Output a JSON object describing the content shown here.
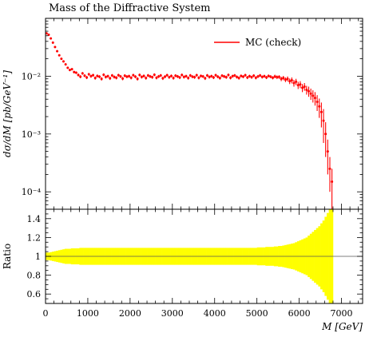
{
  "chart_data": {
    "type": "scatter",
    "title": "Mass of the Diffractive System",
    "main_panel": {
      "ylabel": "dσ/dM [pb/GeV⁻¹]",
      "yscale": "log",
      "ylim": [
        5e-05,
        0.1
      ],
      "y_ticks": [
        0.0001,
        0.001,
        0.01
      ],
      "y_tick_labels": [
        "10⁻⁴",
        "10⁻³",
        "10⁻²"
      ],
      "series": [
        {
          "name": "MC (check)",
          "color": "#ff0000",
          "x": [
            25,
            75,
            125,
            175,
            225,
            275,
            325,
            375,
            425,
            475,
            525,
            575,
            625,
            675,
            725,
            775,
            825,
            875,
            925,
            975,
            1025,
            1075,
            1125,
            1175,
            1225,
            1275,
            1325,
            1375,
            1425,
            1475,
            1525,
            1575,
            1625,
            1675,
            1725,
            1775,
            1825,
            1875,
            1925,
            1975,
            2025,
            2075,
            2125,
            2175,
            2225,
            2275,
            2325,
            2375,
            2425,
            2475,
            2525,
            2575,
            2625,
            2675,
            2725,
            2775,
            2825,
            2875,
            2925,
            2975,
            3025,
            3075,
            3125,
            3175,
            3225,
            3275,
            3325,
            3375,
            3425,
            3475,
            3525,
            3575,
            3625,
            3675,
            3725,
            3775,
            3825,
            3875,
            3925,
            3975,
            4025,
            4075,
            4125,
            4175,
            4225,
            4275,
            4325,
            4375,
            4425,
            4475,
            4525,
            4575,
            4625,
            4675,
            4725,
            4775,
            4825,
            4875,
            4925,
            4975,
            5025,
            5075,
            5125,
            5175,
            5225,
            5275,
            5325,
            5375,
            5425,
            5475,
            5525,
            5575,
            5625,
            5675,
            5725,
            5775,
            5825,
            5875,
            5925,
            5975,
            6025,
            6075,
            6125,
            6175,
            6225,
            6275,
            6325,
            6375,
            6425,
            6475,
            6525,
            6575,
            6625,
            6675,
            6725,
            6775
          ],
          "y": [
            0.055,
            0.052,
            0.045,
            0.038,
            0.032,
            0.027,
            0.023,
            0.02,
            0.018,
            0.016,
            0.014,
            0.0128,
            0.0132,
            0.0118,
            0.0115,
            0.0105,
            0.0098,
            0.0112,
            0.0102,
            0.0095,
            0.0108,
            0.01,
            0.0104,
            0.0093,
            0.0101,
            0.0098,
            0.009,
            0.0106,
            0.0097,
            0.01,
            0.0092,
            0.0103,
            0.0097,
            0.0094,
            0.0104,
            0.0099,
            0.0091,
            0.0102,
            0.0098,
            0.01,
            0.0094,
            0.0104,
            0.0098,
            0.009,
            0.0105,
            0.0097,
            0.0101,
            0.0093,
            0.0103,
            0.0099,
            0.0096,
            0.0106,
            0.0094,
            0.0099,
            0.0103,
            0.0092,
            0.0098,
            0.0104,
            0.0096,
            0.0101,
            0.0093,
            0.0102,
            0.0099,
            0.0095,
            0.0105,
            0.0097,
            0.01,
            0.0093,
            0.0103,
            0.0098,
            0.0096,
            0.0104,
            0.0094,
            0.0101,
            0.0099,
            0.0092,
            0.0103,
            0.0097,
            0.01,
            0.0095,
            0.0104,
            0.0098,
            0.0093,
            0.0102,
            0.0099,
            0.0096,
            0.0105,
            0.0094,
            0.01,
            0.0103,
            0.0097,
            0.0093,
            0.0101,
            0.0098,
            0.0104,
            0.0095,
            0.01,
            0.0096,
            0.0102,
            0.0094,
            0.0099,
            0.0103,
            0.0097,
            0.01,
            0.0095,
            0.0101,
            0.0098,
            0.0094,
            0.0099,
            0.0096,
            0.0097,
            0.009,
            0.0093,
            0.0087,
            0.009,
            0.0082,
            0.0085,
            0.0076,
            0.008,
            0.007,
            0.0072,
            0.0063,
            0.0066,
            0.0058,
            0.0055,
            0.005,
            0.0046,
            0.0042,
            0.0036,
            0.003,
            0.0024,
            0.0017,
            0.001,
            0.0005,
            0.00025,
            0.00015
          ],
          "y_err": [
            0.002,
            0.0019,
            0.0017,
            0.0015,
            0.0013,
            0.0011,
            0.0009,
            0.0008,
            0.0007,
            0.0007,
            0.0006,
            0.0006,
            0.0006,
            0.0006,
            0.0006,
            0.0006,
            0.0006,
            0.0006,
            0.0006,
            0.0006,
            0.0006,
            0.0006,
            0.0006,
            0.0006,
            0.0006,
            0.0006,
            0.0006,
            0.0006,
            0.0006,
            0.0006,
            0.0006,
            0.0006,
            0.0006,
            0.0006,
            0.0006,
            0.0006,
            0.0006,
            0.0006,
            0.0006,
            0.0006,
            0.0006,
            0.0006,
            0.0006,
            0.0006,
            0.0006,
            0.0006,
            0.0006,
            0.0006,
            0.0006,
            0.0006,
            0.0006,
            0.0006,
            0.0006,
            0.0006,
            0.0006,
            0.0006,
            0.0006,
            0.0006,
            0.0006,
            0.0006,
            0.0006,
            0.0006,
            0.0006,
            0.0006,
            0.0006,
            0.0006,
            0.0006,
            0.0006,
            0.0006,
            0.0006,
            0.0006,
            0.0006,
            0.0006,
            0.0006,
            0.0006,
            0.0006,
            0.0006,
            0.0006,
            0.0006,
            0.0006,
            0.0006,
            0.0006,
            0.0006,
            0.0006,
            0.0006,
            0.0006,
            0.0006,
            0.0006,
            0.0006,
            0.0006,
            0.0006,
            0.0006,
            0.0006,
            0.0006,
            0.0006,
            0.0006,
            0.0006,
            0.0006,
            0.0006,
            0.0006,
            0.0006,
            0.0006,
            0.0006,
            0.0006,
            0.0006,
            0.0006,
            0.0006,
            0.0006,
            0.0007,
            0.0007,
            0.0007,
            0.0008,
            0.0008,
            0.0008,
            0.0009,
            0.0009,
            0.001,
            0.001,
            0.001,
            0.001,
            0.001,
            0.001,
            0.001,
            0.001,
            0.0011,
            0.0011,
            0.0011,
            0.0011,
            0.0011,
            0.0011,
            0.0011,
            0.001,
            0.0006,
            0.0003,
            0.00015,
            0.0001
          ]
        }
      ],
      "legend": {
        "position": "top-right",
        "label": "MC (check)"
      }
    },
    "ratio_panel": {
      "ylabel": "Ratio",
      "ylim": [
        0.5,
        1.5
      ],
      "y_ticks": [
        0.6,
        0.8,
        1.0,
        1.2,
        1.4
      ],
      "y_tick_labels": [
        "0.6",
        "0.8",
        "1",
        "1.2",
        "1.4"
      ],
      "reference_line": 1.0,
      "band_color": "#ffff00",
      "band_halfwidth": [
        0.04,
        0.04,
        0.045,
        0.05,
        0.055,
        0.06,
        0.065,
        0.07,
        0.075,
        0.08,
        0.08,
        0.08,
        0.085,
        0.085,
        0.085,
        0.085,
        0.09,
        0.09,
        0.09,
        0.09,
        0.09,
        0.09,
        0.09,
        0.09,
        0.09,
        0.09,
        0.09,
        0.09,
        0.09,
        0.09,
        0.09,
        0.09,
        0.09,
        0.09,
        0.09,
        0.09,
        0.09,
        0.09,
        0.09,
        0.09,
        0.09,
        0.09,
        0.09,
        0.09,
        0.09,
        0.09,
        0.09,
        0.09,
        0.09,
        0.09,
        0.09,
        0.09,
        0.09,
        0.09,
        0.09,
        0.09,
        0.09,
        0.09,
        0.09,
        0.09,
        0.09,
        0.09,
        0.09,
        0.09,
        0.09,
        0.09,
        0.09,
        0.09,
        0.09,
        0.09,
        0.09,
        0.09,
        0.09,
        0.09,
        0.09,
        0.09,
        0.09,
        0.09,
        0.09,
        0.09,
        0.09,
        0.09,
        0.09,
        0.09,
        0.09,
        0.09,
        0.09,
        0.09,
        0.09,
        0.09,
        0.09,
        0.09,
        0.09,
        0.09,
        0.09,
        0.09,
        0.09,
        0.09,
        0.09,
        0.09,
        0.095,
        0.095,
        0.095,
        0.095,
        0.1,
        0.1,
        0.1,
        0.1,
        0.105,
        0.105,
        0.11,
        0.11,
        0.115,
        0.12,
        0.125,
        0.13,
        0.135,
        0.14,
        0.15,
        0.16,
        0.17,
        0.18,
        0.19,
        0.2,
        0.22,
        0.24,
        0.26,
        0.28,
        0.3,
        0.32,
        0.35,
        0.38,
        0.42,
        0.46,
        0.5,
        0.55
      ]
    },
    "xaxis": {
      "label": "M [GeV]",
      "xlim": [
        0,
        7500
      ],
      "ticks": [
        0,
        1000,
        2000,
        3000,
        4000,
        5000,
        6000,
        7000
      ],
      "tick_labels": [
        "0",
        "1000",
        "2000",
        "3000",
        "4000",
        "5000",
        "6000",
        "7000"
      ]
    }
  }
}
